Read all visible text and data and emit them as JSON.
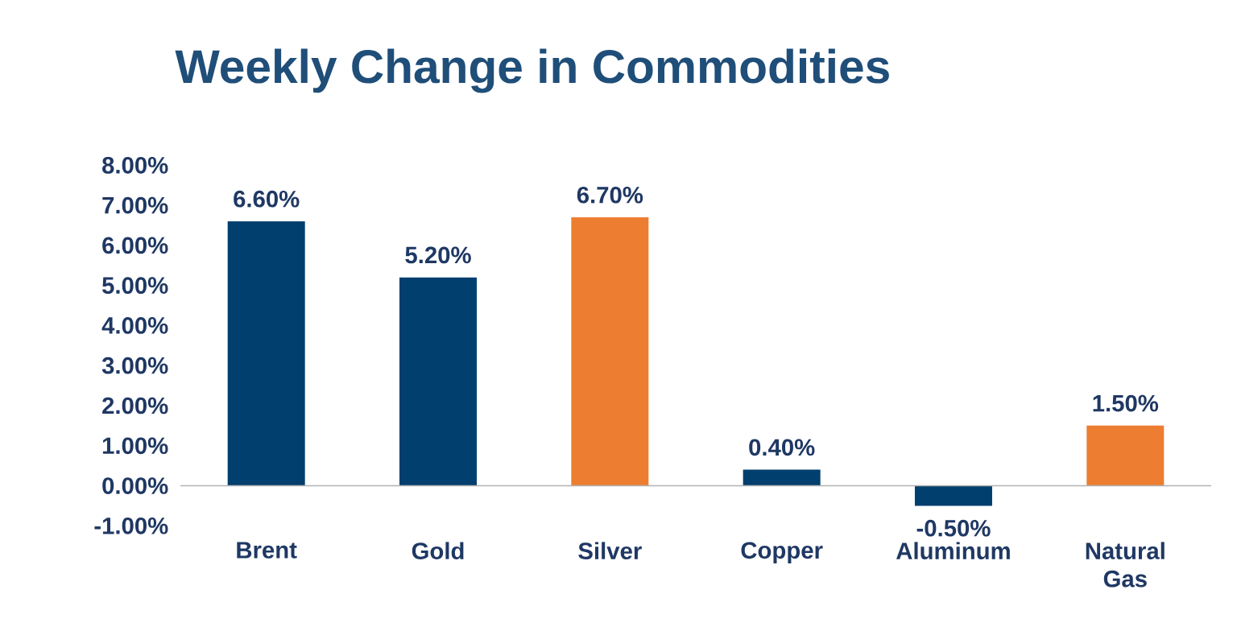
{
  "chart_data": {
    "type": "bar",
    "title": "Weekly Change in Commodities",
    "categories": [
      "Brent",
      "Gold",
      "Silver",
      "Copper",
      "Aluminum",
      "Natural Gas"
    ],
    "values": [
      6.6,
      5.2,
      6.7,
      0.4,
      -0.5,
      1.5
    ],
    "colors": [
      "#003f6e",
      "#003f6e",
      "#ed7d31",
      "#003f6e",
      "#003f6e",
      "#ed7d31"
    ],
    "value_labels": [
      "6.60%",
      "5.20%",
      "6.70%",
      "0.40%",
      "-0.50%",
      "1.50%"
    ],
    "ylim": [
      -1,
      8
    ],
    "yticks": [
      {
        "value": -1,
        "label": "-1.00%"
      },
      {
        "value": 0,
        "label": "0.00%"
      },
      {
        "value": 1,
        "label": "1.00%"
      },
      {
        "value": 2,
        "label": "2.00%"
      },
      {
        "value": 3,
        "label": "3.00%"
      },
      {
        "value": 4,
        "label": "4.00%"
      },
      {
        "value": 5,
        "label": "5.00%"
      },
      {
        "value": 6,
        "label": "6.00%"
      },
      {
        "value": 7,
        "label": "7.00%"
      },
      {
        "value": 8,
        "label": "8.00%"
      }
    ]
  }
}
